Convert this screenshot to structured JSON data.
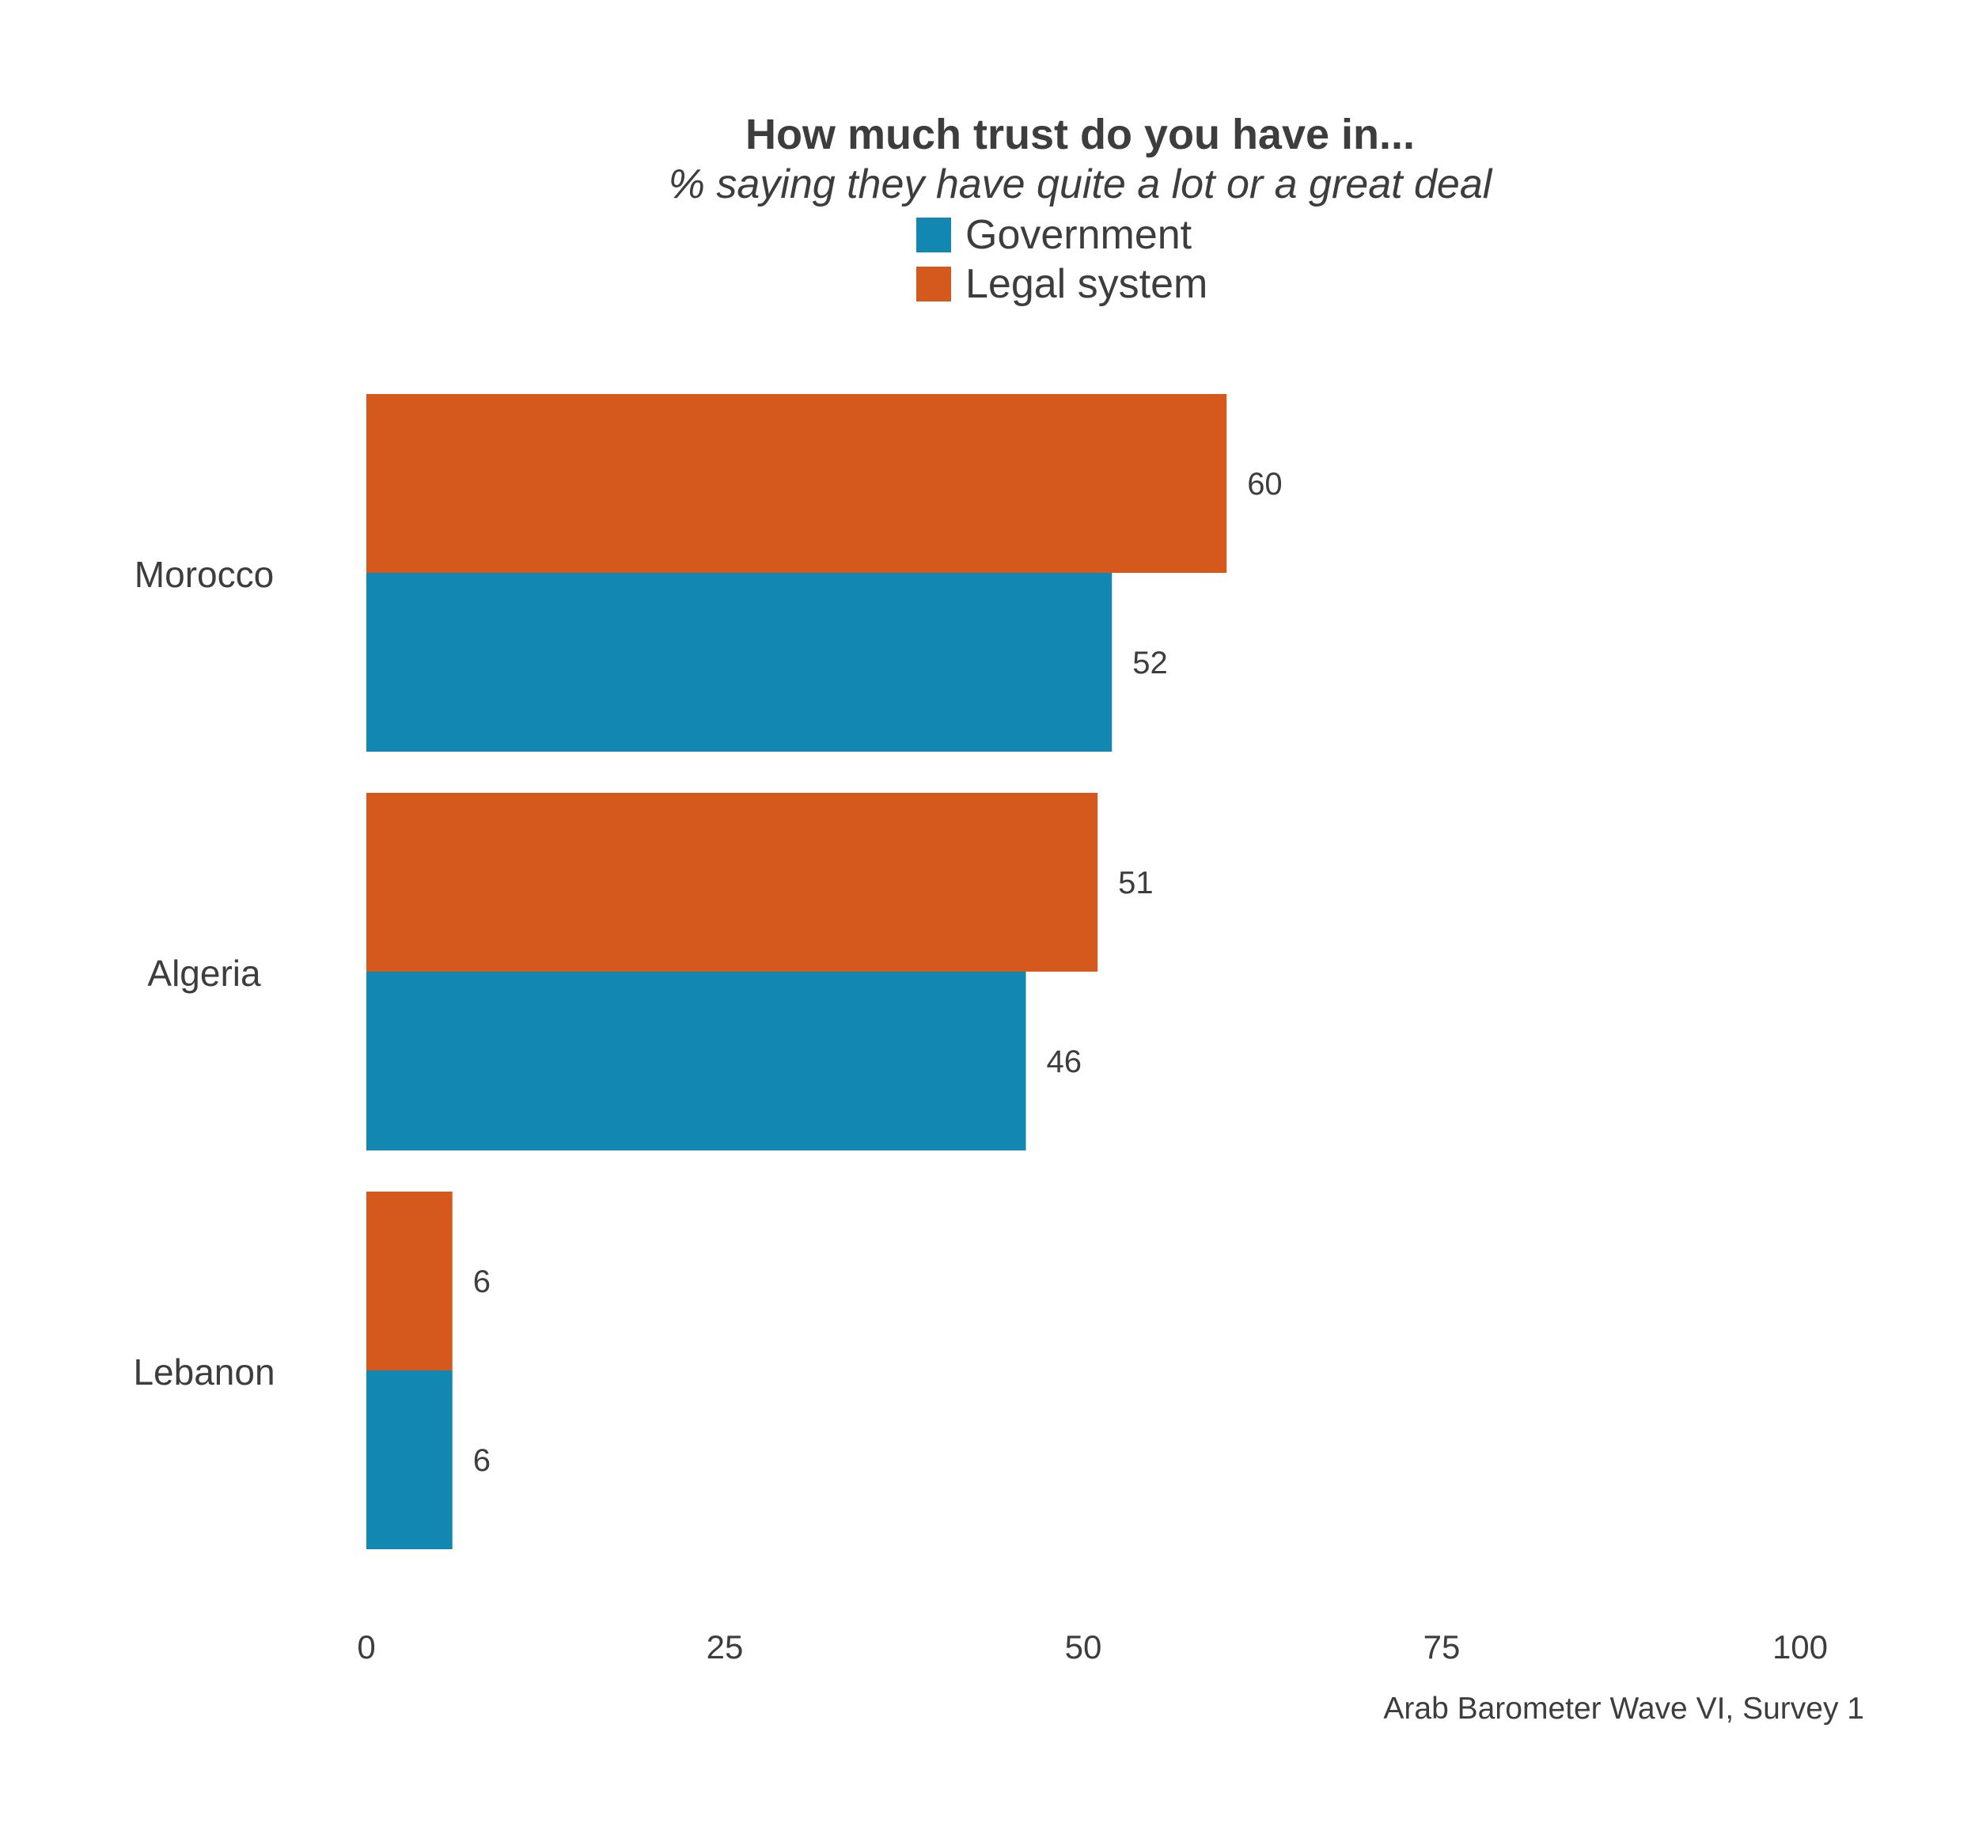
{
  "header": {
    "title": "How much trust do you have in...",
    "subtitle": "% saying they have quite a lot or a great deal"
  },
  "caption": "Arab Barometer Wave VI, Survey 1",
  "colors": {
    "Government": "#1287b2",
    "Legal system": "#d5591d"
  },
  "chart_data": {
    "type": "bar",
    "orientation": "horizontal",
    "title": "How much trust do you have in...",
    "subtitle": "% saying they have quite a lot or a great deal",
    "categories": [
      "Morocco",
      "Algeria",
      "Lebanon"
    ],
    "series": [
      {
        "name": "Legal system",
        "values": [
          60,
          51,
          6
        ]
      },
      {
        "name": "Government",
        "values": [
          52,
          46,
          6
        ]
      }
    ],
    "legend": [
      "Government",
      "Legal system"
    ],
    "legend_position": "top",
    "xlim": [
      0,
      100
    ],
    "xticks": [
      "0",
      "25",
      "50",
      "75",
      "100"
    ],
    "xlabel": "",
    "ylabel": "",
    "grid": false
  }
}
